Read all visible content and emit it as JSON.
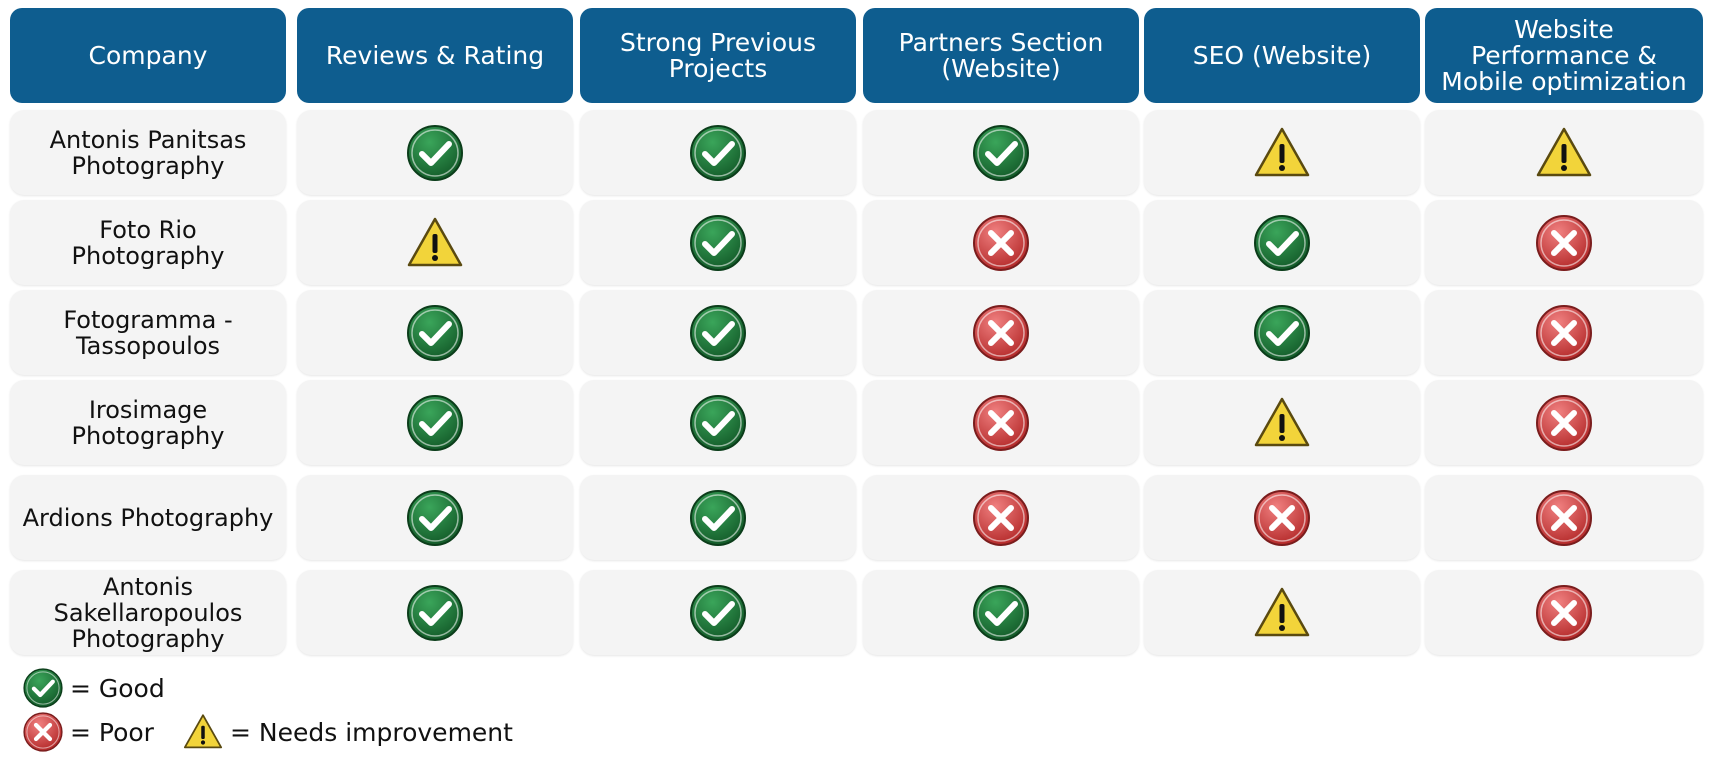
{
  "chart_data": {
    "type": "table",
    "columns": [
      "Company",
      "Reviews & Rating",
      "Strong Previous\nProjects",
      "Partners Section\n(Website)",
      "SEO (Website)",
      "Website\nPerformance &\nMobile optimization"
    ],
    "rows": [
      {
        "company": "Antonis Panitsas\nPhotography",
        "values": [
          "good",
          "good",
          "good",
          "needs_improvement",
          "needs_improvement"
        ]
      },
      {
        "company": "Foto Rio\nPhotography",
        "values": [
          "needs_improvement",
          "good",
          "poor",
          "good",
          "poor"
        ]
      },
      {
        "company": "Fotogramma -\nTassopoulos",
        "values": [
          "good",
          "good",
          "poor",
          "good",
          "poor"
        ]
      },
      {
        "company": "Irosimage\nPhotography",
        "values": [
          "good",
          "good",
          "poor",
          "needs_improvement",
          "poor"
        ]
      },
      {
        "company": "Ardions Photography",
        "values": [
          "good",
          "good",
          "poor",
          "poor",
          "poor"
        ]
      },
      {
        "company": "Antonis Sakellaropoulos\nPhotography",
        "values": [
          "good",
          "good",
          "good",
          "needs_improvement",
          "poor"
        ]
      }
    ],
    "legend": [
      {
        "key": "good",
        "label": "= Good"
      },
      {
        "key": "poor",
        "label": "= Poor"
      },
      {
        "key": "needs_improvement",
        "label": "= Needs improvement"
      }
    ]
  },
  "colors": {
    "header_bg": "#0e5d8f",
    "cell_bg": "#f4f4f4",
    "good": "#1f7a3a",
    "poor": "#d94848",
    "needs_improvement": "#f2d43a"
  },
  "icons": {
    "good": "green-check-icon",
    "poor": "red-x-icon",
    "needs_improvement": "warning-triangle-icon"
  }
}
